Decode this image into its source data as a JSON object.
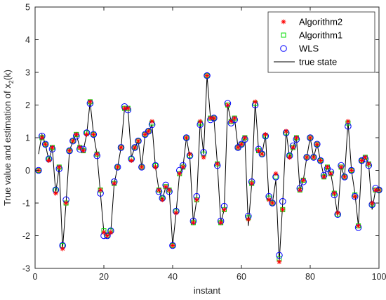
{
  "chart_data": {
    "type": "line",
    "xlabel": "instant",
    "ylabel": "True value and estimation of x",
    "ylabel_sub": "2",
    "ylabel_tail": "(k)",
    "xlim": [
      0,
      100
    ],
    "ylim": [
      -3,
      5
    ],
    "xticks": [
      "0",
      "20",
      "40",
      "60",
      "80",
      "100"
    ],
    "yticks": [
      "-3",
      "-2",
      "-1",
      "0",
      "1",
      "2",
      "3",
      "4",
      "5"
    ],
    "grid": false,
    "legend_position": "top-right",
    "legend": [
      {
        "label": "Algorithm2",
        "marker": "asterisk",
        "color": "#ff0000"
      },
      {
        "label": "Algorithm1",
        "marker": "square",
        "color": "#00dd00"
      },
      {
        "label": "WLS",
        "marker": "circle",
        "color": "#0000ff"
      },
      {
        "label": "true state",
        "marker": "line",
        "color": "#000000"
      }
    ],
    "x": [
      1,
      2,
      3,
      4,
      5,
      6,
      7,
      8,
      9,
      10,
      11,
      12,
      13,
      14,
      15,
      16,
      17,
      18,
      19,
      20,
      21,
      22,
      23,
      24,
      25,
      26,
      27,
      28,
      29,
      30,
      31,
      32,
      33,
      34,
      35,
      36,
      37,
      38,
      39,
      40,
      41,
      42,
      43,
      44,
      45,
      46,
      47,
      48,
      49,
      50,
      51,
      52,
      53,
      54,
      55,
      56,
      57,
      58,
      59,
      60,
      61,
      62,
      63,
      64,
      65,
      66,
      67,
      68,
      69,
      70,
      71,
      72,
      73,
      74,
      75,
      76,
      77,
      78,
      79,
      80,
      81,
      82,
      83,
      84,
      85,
      86,
      87,
      88,
      89,
      90,
      91,
      92,
      93,
      94,
      95,
      96,
      97,
      98,
      99,
      100
    ],
    "series": [
      {
        "name": "true state",
        "values": [
          0.5,
          1.1,
          0.8,
          0.3,
          0.7,
          -0.7,
          0.1,
          -2.4,
          -1.0,
          0.6,
          0.9,
          1.1,
          0.7,
          0.6,
          1.1,
          2.1,
          1.1,
          0.5,
          -0.7,
          -1.9,
          -2.0,
          -1.9,
          -0.4,
          0.1,
          0.7,
          1.9,
          1.9,
          0.4,
          0.7,
          0.9,
          0.1,
          1.1,
          1.2,
          1.4,
          0.1,
          -0.6,
          -0.9,
          -0.5,
          -0.6,
          -2.3,
          -1.3,
          -0.1,
          0.1,
          1.0,
          0.4,
          -1.6,
          -0.9,
          1.5,
          0.5,
          2.9,
          1.6,
          1.6,
          0.2,
          -1.6,
          -1.2,
          2.0,
          1.5,
          1.6,
          0.7,
          0.8,
          1.0,
          -1.7,
          -0.4,
          2.1,
          0.6,
          0.5,
          1.1,
          -0.9,
          -1.0,
          -0.3,
          -2.8,
          -1.0,
          1.2,
          0.4,
          0.7,
          1.0,
          -0.6,
          -0.3,
          0.4,
          1.0,
          0.4,
          0.8,
          0.3,
          -0.2,
          0.1,
          -0.1,
          -0.7,
          -1.4,
          0.1,
          -0.2,
          1.5,
          0.0,
          -0.7,
          -1.7,
          0.3,
          0.4,
          0.2,
          -1.2,
          -0.6,
          -0.6
        ]
      },
      {
        "name": "Algorithm2",
        "values": [
          0.0,
          1.0,
          0.8,
          0.3,
          0.7,
          -0.7,
          0.1,
          -2.4,
          -1.0,
          0.6,
          0.9,
          1.1,
          0.7,
          0.6,
          1.1,
          2.1,
          1.1,
          0.5,
          -0.6,
          -1.9,
          -2.0,
          -1.9,
          -0.4,
          0.1,
          0.7,
          1.9,
          1.9,
          0.3,
          0.7,
          0.9,
          0.1,
          1.1,
          1.2,
          1.5,
          0.1,
          -0.6,
          -0.9,
          -0.5,
          -0.6,
          -2.3,
          -1.3,
          -0.1,
          0.1,
          1.0,
          0.5,
          -1.6,
          -0.9,
          1.5,
          0.4,
          2.9,
          1.6,
          1.6,
          0.2,
          -1.6,
          -1.2,
          2.0,
          1.5,
          1.6,
          0.7,
          0.8,
          1.0,
          -1.5,
          -0.4,
          2.1,
          0.6,
          0.5,
          1.1,
          -0.9,
          -1.0,
          -0.1,
          -2.8,
          -1.2,
          1.2,
          0.4,
          0.7,
          1.0,
          -0.6,
          -0.3,
          0.4,
          1.0,
          0.4,
          0.8,
          0.3,
          -0.2,
          0.1,
          -0.1,
          -0.7,
          -1.3,
          0.1,
          -0.2,
          1.5,
          0.0,
          -0.8,
          -1.7,
          0.3,
          0.4,
          0.2,
          -1.0,
          -0.6,
          -0.6
        ]
      },
      {
        "name": "Algorithm1",
        "values": [
          0.0,
          1.0,
          0.8,
          0.35,
          0.7,
          -0.6,
          0.1,
          -2.3,
          -1.0,
          0.6,
          0.9,
          1.1,
          0.7,
          0.6,
          1.15,
          2.1,
          1.1,
          0.5,
          -0.6,
          -1.85,
          -2.0,
          -1.85,
          -0.4,
          0.1,
          0.7,
          1.9,
          1.9,
          0.35,
          0.7,
          0.9,
          0.1,
          1.1,
          1.2,
          1.45,
          0.15,
          -0.6,
          -0.85,
          -0.5,
          -0.6,
          -2.3,
          -1.25,
          -0.1,
          0.1,
          1.0,
          0.45,
          -1.6,
          -0.9,
          1.45,
          0.5,
          2.9,
          1.6,
          1.6,
          0.2,
          -1.6,
          -1.2,
          2.0,
          1.5,
          1.6,
          0.7,
          0.8,
          1.0,
          -1.45,
          -0.4,
          2.05,
          0.6,
          0.5,
          1.05,
          -0.85,
          -1.0,
          -0.2,
          -2.7,
          -1.2,
          1.15,
          0.45,
          0.7,
          1.0,
          -0.6,
          -0.3,
          0.4,
          1.0,
          0.4,
          0.8,
          0.3,
          -0.2,
          0.1,
          -0.1,
          -0.7,
          -1.35,
          0.1,
          -0.2,
          1.45,
          0.0,
          -0.75,
          -1.7,
          0.3,
          0.4,
          0.2,
          -1.05,
          -0.6,
          -0.6
        ]
      },
      {
        "name": "WLS",
        "values": [
          0.0,
          1.05,
          0.8,
          0.35,
          0.65,
          -0.6,
          0.05,
          -2.3,
          -0.9,
          0.6,
          0.9,
          1.05,
          0.65,
          0.65,
          1.15,
          2.05,
          1.1,
          0.45,
          -0.7,
          -2.0,
          -2.0,
          -1.85,
          -0.35,
          0.1,
          0.7,
          1.95,
          1.85,
          0.35,
          0.7,
          0.9,
          0.1,
          1.1,
          1.2,
          1.4,
          0.15,
          -0.65,
          -0.85,
          -0.45,
          -0.65,
          -2.3,
          -1.25,
          0.0,
          0.15,
          1.0,
          0.45,
          -1.55,
          -0.8,
          1.4,
          0.55,
          2.9,
          1.55,
          1.6,
          0.15,
          -1.55,
          -1.1,
          2.05,
          1.45,
          1.55,
          0.7,
          0.8,
          0.95,
          -1.4,
          -0.35,
          2.0,
          0.65,
          0.5,
          1.05,
          -0.8,
          -1.0,
          -0.2,
          -2.6,
          -0.95,
          1.15,
          0.45,
          0.75,
          0.95,
          -0.55,
          -0.35,
          0.4,
          1.0,
          0.4,
          0.8,
          0.3,
          -0.15,
          0.05,
          -0.05,
          -0.75,
          -1.35,
          0.15,
          -0.2,
          1.35,
          0.0,
          -0.8,
          -1.75,
          0.3,
          0.35,
          0.15,
          -1.05,
          -0.55,
          -0.6
        ]
      }
    ]
  }
}
